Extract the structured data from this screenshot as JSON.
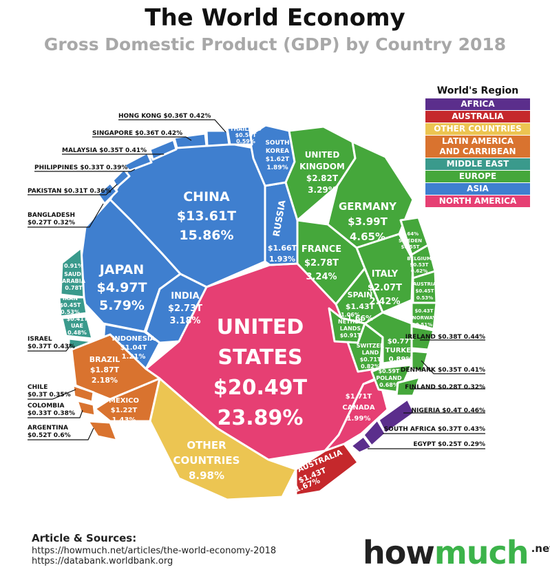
{
  "header": {
    "title": "The World Economy",
    "subtitle": "Gross Domestic Product (GDP) by Country 2018"
  },
  "legend": {
    "title": "World's Region",
    "items": [
      {
        "label": "AFRICA",
        "color": "#5b2e8c"
      },
      {
        "label": "AUSTRALIA",
        "color": "#c5282c"
      },
      {
        "label": "OTHER COUNTRIES",
        "color": "#ecc552"
      },
      {
        "label": "LATIN AMERICA AND CARRIBEAN",
        "line1": "LATIN AMERICA",
        "line2": "AND CARRIBEAN",
        "color": "#d9732f"
      },
      {
        "label": "MIDDLE EAST",
        "color": "#3a9a8c"
      },
      {
        "label": "EUROPE",
        "color": "#45a73b"
      },
      {
        "label": "ASIA",
        "color": "#3f7fcf"
      },
      {
        "label": "NORTH AMERICA",
        "color": "#e63f73"
      }
    ]
  },
  "chart_data": {
    "type": "table",
    "title": "The World Economy",
    "subtitle": "Gross Domestic Product (GDP) by Country 2018",
    "unit": "USD trillions",
    "regions": [
      "AFRICA",
      "AUSTRALIA",
      "OTHER COUNTRIES",
      "LATIN AMERICA AND CARRIBEAN",
      "MIDDLE EAST",
      "EUROPE",
      "ASIA",
      "NORTH AMERICA"
    ],
    "countries": [
      {
        "name": "UNITED STATES",
        "gdp": 20.49,
        "gdp_label": "$20.49T",
        "share": 23.89,
        "share_label": "23.89%",
        "region": "NORTH AMERICA"
      },
      {
        "name": "CHINA",
        "gdp": 13.61,
        "gdp_label": "$13.61T",
        "share": 15.86,
        "share_label": "15.86%",
        "region": "ASIA"
      },
      {
        "name": "JAPAN",
        "gdp": 4.97,
        "gdp_label": "$4.97T",
        "share": 5.79,
        "share_label": "5.79%",
        "region": "ASIA"
      },
      {
        "name": "GERMANY",
        "gdp": 3.99,
        "gdp_label": "$3.99T",
        "share": 4.65,
        "share_label": "4.65%",
        "region": "EUROPE"
      },
      {
        "name": "UNITED KINGDOM",
        "gdp": 2.82,
        "gdp_label": "$2.82T",
        "share": 3.29,
        "share_label": "3.29%",
        "region": "EUROPE"
      },
      {
        "name": "FRANCE",
        "gdp": 2.78,
        "gdp_label": "$2.78T",
        "share": 3.24,
        "share_label": "3.24%",
        "region": "EUROPE"
      },
      {
        "name": "INDIA",
        "gdp": 2.73,
        "gdp_label": "$2.73T",
        "share": 3.18,
        "share_label": "3.18%",
        "region": "ASIA"
      },
      {
        "name": "ITALY",
        "gdp": 2.07,
        "gdp_label": "$2.07T",
        "share": 2.42,
        "share_label": "2.42%",
        "region": "EUROPE"
      },
      {
        "name": "BRAZIL",
        "gdp": 1.87,
        "gdp_label": "$1.87T",
        "share": 2.18,
        "share_label": "2.18%",
        "region": "LATIN AMERICA AND CARRIBEAN"
      },
      {
        "name": "CANADA",
        "gdp": 1.71,
        "gdp_label": "$1.71T",
        "share": 1.99,
        "share_label": "1.99%",
        "region": "NORTH AMERICA"
      },
      {
        "name": "RUSSIA",
        "gdp": 1.66,
        "gdp_label": "$1.66T",
        "share": 1.93,
        "share_label": "1.93%",
        "region": "ASIA"
      },
      {
        "name": "SOUTH KOREA",
        "gdp": 1.62,
        "gdp_label": "$1.62T",
        "share": 1.89,
        "share_label": "1.89%",
        "region": "ASIA"
      },
      {
        "name": "AUSTRALIA",
        "gdp": 1.43,
        "gdp_label": "$1.43T",
        "share": 1.67,
        "share_label": "1.67%",
        "region": "AUSTRALIA"
      },
      {
        "name": "SPAIN",
        "gdp": 1.43,
        "gdp_label": "$1.43T",
        "share": 1.66,
        "share_label": "1.66%",
        "region": "EUROPE"
      },
      {
        "name": "MEXICO",
        "gdp": 1.22,
        "gdp_label": "$1.22T",
        "share": 1.43,
        "share_label": "1.43%",
        "region": "LATIN AMERICA AND CARRIBEAN"
      },
      {
        "name": "INDONESIA",
        "gdp": 1.04,
        "gdp_label": "$1.04T",
        "share": 1.21,
        "share_label": "1.21%",
        "region": "ASIA"
      },
      {
        "name": "NETHERLANDS",
        "gdp": 0.91,
        "gdp_label": "$0.91T",
        "share": 1.06,
        "share_label": "1.06%",
        "region": "EUROPE"
      },
      {
        "name": "SAUDI ARABIA",
        "gdp": 0.78,
        "gdp_label": "0.78T",
        "share": 0.91,
        "share_label": "0.91%",
        "region": "MIDDLE EAST"
      },
      {
        "name": "TURKEY",
        "gdp": 0.77,
        "gdp_label": "$0.77T",
        "share": 0.89,
        "share_label": "0.89%",
        "region": "EUROPE"
      },
      {
        "name": "SWITZERLAND",
        "gdp": 0.71,
        "gdp_label": "$0.71T",
        "share": 0.82,
        "share_label": "0.82%",
        "region": "EUROPE"
      },
      {
        "name": "POLAND",
        "gdp": 0.59,
        "gdp_label": "$0.59T",
        "share": 0.68,
        "share_label": "0.68%",
        "region": "EUROPE"
      },
      {
        "name": "SWEDEN",
        "gdp": 0.55,
        "gdp_label": "$0.55T",
        "share": 0.64,
        "share_label": "0.64%",
        "region": "EUROPE"
      },
      {
        "name": "BELGIUM",
        "gdp": 0.53,
        "gdp_label": "$0.53T",
        "share": 0.62,
        "share_label": "0.62%",
        "region": "EUROPE"
      },
      {
        "name": "ARGENTINA",
        "gdp": 0.52,
        "gdp_label": "$0.52T",
        "share": 0.6,
        "share_label": "0.6%",
        "region": "LATIN AMERICA AND CARRIBEAN"
      },
      {
        "name": "THAILAND",
        "gdp": 0.5,
        "gdp_label": "$0.50T",
        "share": 0.59,
        "share_label": "0.59%",
        "region": "ASIA"
      },
      {
        "name": "IRAN",
        "gdp": 0.45,
        "gdp_label": "$0.45T",
        "share": 0.53,
        "share_label": "0.53%",
        "region": "MIDDLE EAST"
      },
      {
        "name": "AUSTRIA",
        "gdp": 0.45,
        "gdp_label": "$0.45T",
        "share": 0.53,
        "share_label": "0.53%",
        "region": "EUROPE"
      },
      {
        "name": "NORWAY",
        "gdp": 0.43,
        "gdp_label": "$0.43T",
        "share": 0.51,
        "share_label": "0.51%",
        "region": "EUROPE"
      },
      {
        "name": "UAE",
        "gdp": 0.41,
        "gdp_label": "$0.41T",
        "share": 0.48,
        "share_label": "0.48%",
        "region": "MIDDLE EAST"
      },
      {
        "name": "NIGERIA",
        "gdp": 0.4,
        "gdp_label": "$0.4T",
        "share": 0.46,
        "share_label": "0.46%",
        "region": "AFRICA"
      },
      {
        "name": "IRELAND",
        "gdp": 0.38,
        "gdp_label": "$0.38T",
        "share": 0.44,
        "share_label": "0.44%",
        "region": "EUROPE"
      },
      {
        "name": "ISRAEL",
        "gdp": 0.37,
        "gdp_label": "$0.37T",
        "share": 0.43,
        "share_label": "0.43%",
        "region": "MIDDLE EAST"
      },
      {
        "name": "SOUTH AFRICA",
        "gdp": 0.37,
        "gdp_label": "$0.37T",
        "share": 0.43,
        "share_label": "0.43%",
        "region": "AFRICA"
      },
      {
        "name": "HONG KONG",
        "gdp": 0.36,
        "gdp_label": "$0.36T",
        "share": 0.42,
        "share_label": "0.42%",
        "region": "ASIA"
      },
      {
        "name": "SINGAPORE",
        "gdp": 0.36,
        "gdp_label": "$0.36T",
        "share": 0.42,
        "share_label": "0.42%",
        "region": "ASIA"
      },
      {
        "name": "MALAYSIA",
        "gdp": 0.35,
        "gdp_label": "$0.35T",
        "share": 0.41,
        "share_label": "0.41%",
        "region": "ASIA"
      },
      {
        "name": "DENMARK",
        "gdp": 0.35,
        "gdp_label": "$0.35T",
        "share": 0.41,
        "share_label": "0.41%",
        "region": "EUROPE"
      },
      {
        "name": "PHILIPPINES",
        "gdp": 0.33,
        "gdp_label": "$0.33T",
        "share": 0.39,
        "share_label": "0.39%",
        "region": "ASIA"
      },
      {
        "name": "COLOMBIA",
        "gdp": 0.33,
        "gdp_label": "$0.33T",
        "share": 0.38,
        "share_label": "0.38%",
        "region": "LATIN AMERICA AND CARRIBEAN"
      },
      {
        "name": "PAKISTAN",
        "gdp": 0.31,
        "gdp_label": "$0.31T",
        "share": 0.36,
        "share_label": "0.36%",
        "region": "ASIA"
      },
      {
        "name": "CHILE",
        "gdp": 0.3,
        "gdp_label": "$0.3T",
        "share": 0.35,
        "share_label": "0.35%",
        "region": "LATIN AMERICA AND CARRIBEAN"
      },
      {
        "name": "FINLAND",
        "gdp": 0.28,
        "gdp_label": "$0.28T",
        "share": 0.32,
        "share_label": "0.32%",
        "region": "EUROPE"
      },
      {
        "name": "BANGLADESH",
        "gdp": 0.27,
        "gdp_label": "$0.27T",
        "share": 0.32,
        "share_label": "0.32%",
        "region": "ASIA"
      },
      {
        "name": "EGYPT",
        "gdp": 0.25,
        "gdp_label": "$0.25T",
        "share": 0.29,
        "share_label": "0.29%",
        "region": "AFRICA"
      },
      {
        "name": "OTHER COUNTRIES",
        "gdp": null,
        "gdp_label": "",
        "share": 8.98,
        "share_label": "8.98%",
        "region": "OTHER COUNTRIES"
      }
    ]
  },
  "sources": {
    "heading": "Article & Sources:",
    "line1": "https://howmuch.net/articles/the-world-economy-2018",
    "line2": "https://databank.worldbank.org"
  },
  "brand": {
    "part1": "how",
    "part2": "much",
    "part3": ".net"
  }
}
